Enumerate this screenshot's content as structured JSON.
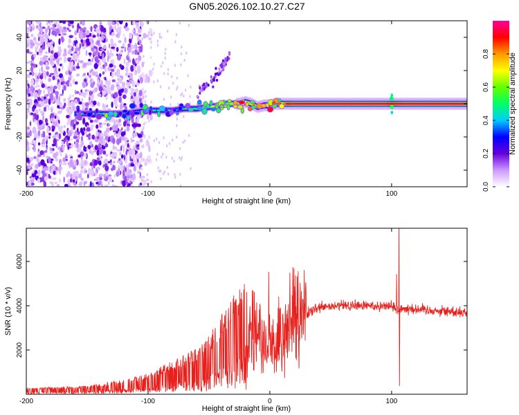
{
  "title": "GN05.2026.102.10.27.C27",
  "chart_data": [
    {
      "type": "heatmap",
      "xlabel": "Height of straight line (km)",
      "ylabel": "Frequency (Hz)",
      "xlim": [
        -200,
        162
      ],
      "ylim": [
        -50,
        50
      ],
      "x_ticks": [
        -200,
        -100,
        0,
        100
      ],
      "y_ticks": [
        -40,
        -20,
        0,
        20,
        40
      ],
      "colorbar": {
        "label": "Normalized spectral amplitude",
        "range": [
          0,
          1
        ],
        "ticks": [
          0.0,
          0.2,
          0.4,
          0.6,
          0.8
        ],
        "tick_labels": [
          "0.0",
          "0.2",
          "0.4",
          "0.6",
          "0.8"
        ],
        "colors": [
          "#ffffff",
          "#cc99ff",
          "#6600dd",
          "#0000ff",
          "#00ccff",
          "#00ff66",
          "#66ff00",
          "#ffff00",
          "#ff9900",
          "#ff0000",
          "#ff0099"
        ]
      },
      "ridge": {
        "x": [
          -160,
          -140,
          -120,
          -110,
          -100,
          -90,
          -80,
          -70,
          -60,
          -50,
          -40,
          -35,
          -30,
          -25,
          -20,
          -15,
          -10,
          -5,
          0,
          5,
          10,
          20,
          40,
          60,
          80,
          95,
          100,
          110,
          130,
          162
        ],
        "frequency": [
          -6,
          -6,
          -6,
          -5,
          -4,
          -4,
          -4,
          -3,
          -3,
          -2,
          -1,
          0,
          0,
          0,
          1,
          0,
          -2,
          -1,
          -1,
          0,
          0,
          0,
          0,
          0,
          0,
          0,
          0,
          0,
          0,
          0
        ],
        "amplitude": [
          0.3,
          0.45,
          0.35,
          0.4,
          0.45,
          0.45,
          0.4,
          0.45,
          0.5,
          0.55,
          0.55,
          0.6,
          0.65,
          0.75,
          0.8,
          0.75,
          0.75,
          0.8,
          0.85,
          0.85,
          0.9,
          0.95,
          0.95,
          0.95,
          0.95,
          0.95,
          0.9,
          0.95,
          0.95,
          0.95
        ]
      },
      "noise_region_x": [
        -200,
        -105
      ],
      "side_branch": {
        "x": [
          -60,
          -45,
          -33
        ],
        "frequency": [
          6,
          15,
          30
        ]
      }
    },
    {
      "type": "line",
      "xlabel": "Height of straight line (km)",
      "ylabel": "SNR (10 * v/v)",
      "xlim": [
        -200,
        162
      ],
      "ylim": [
        0,
        7500
      ],
      "x_ticks": [
        -200,
        -100,
        0,
        100
      ],
      "y_ticks": [
        2000,
        4000,
        6000
      ],
      "series": [
        {
          "name": "SNR",
          "color": "#e8201c",
          "envelope_x": [
            -200,
            -150,
            -120,
            -100,
            -80,
            -60,
            -50,
            -40,
            -30,
            -20,
            -10,
            0,
            10,
            20,
            30,
            40,
            60,
            80,
            95,
            100,
            105,
            110,
            130,
            162
          ],
          "envelope_y": [
            150,
            200,
            350,
            500,
            800,
            1100,
            1400,
            1900,
            2400,
            2700,
            2700,
            2000,
            2400,
            3000,
            3600,
            3900,
            4000,
            4000,
            4000,
            4000,
            3800,
            3900,
            3800,
            3700
          ],
          "spikes": [
            {
              "x": -24,
              "y": 4300
            },
            {
              "x": -1,
              "y": 5500
            },
            {
              "x": 104,
              "y": 5400
            },
            {
              "x": 106,
              "y": 7500
            },
            {
              "x": 106.5,
              "y": 400
            }
          ]
        }
      ]
    }
  ]
}
